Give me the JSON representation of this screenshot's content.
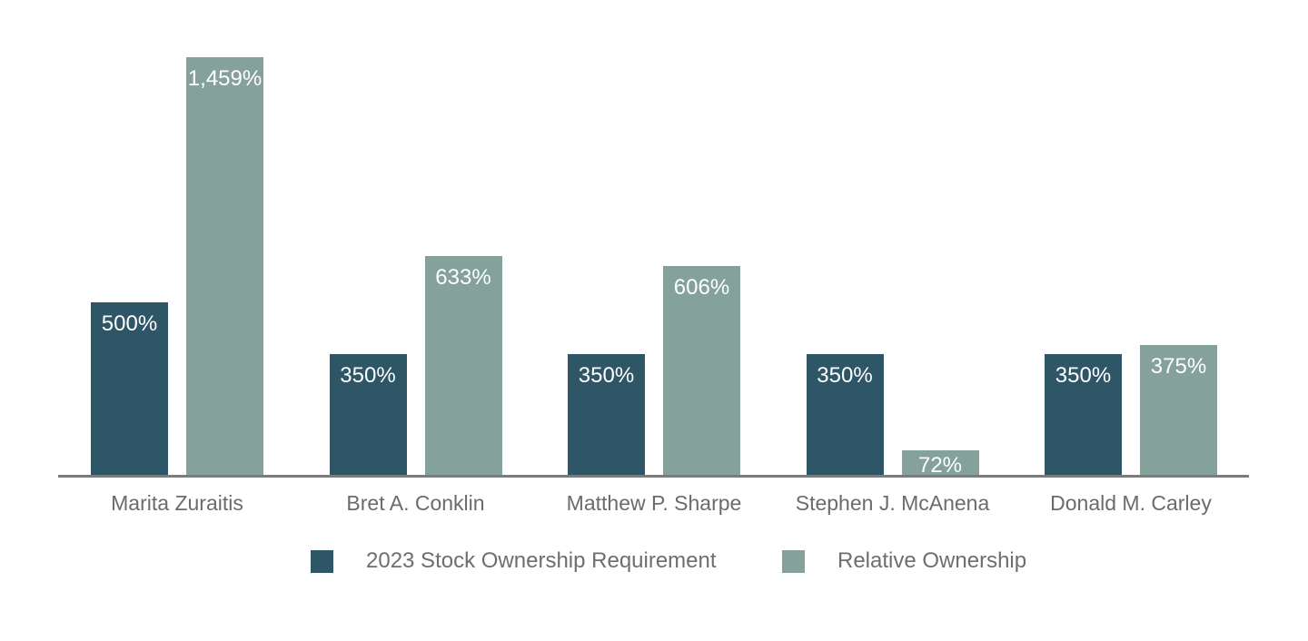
{
  "chart_data": {
    "type": "bar",
    "title": "",
    "xlabel": "",
    "ylabel": "",
    "value_suffix": "%",
    "ylim": [
      0,
      1210
    ],
    "grid": false,
    "legend_position": "bottom",
    "value_label_position": "inside-top",
    "note": "Tallest bar (1,459%) is visually clipped at the top of the plot area",
    "categories": [
      "Marita Zuraitis",
      "Bret A. Conklin",
      "Matthew P. Sharpe",
      "Stephen J. McAnena",
      "Donald M. Carley"
    ],
    "series": [
      {
        "name": "2023 Stock Ownership Requirement",
        "color": "#2e5667",
        "values": [
          500,
          350,
          350,
          350,
          350
        ],
        "labels": [
          "500%",
          "350%",
          "350%",
          "350%",
          "350%"
        ]
      },
      {
        "name": "Relative Ownership",
        "color": "#85a19c",
        "values": [
          1459,
          633,
          606,
          72,
          375
        ],
        "labels": [
          "1,459%",
          "633%",
          "606%",
          "72%",
          "375%"
        ]
      }
    ]
  },
  "colors": {
    "background": "#ffffff",
    "axis_line": "#7b7b7b",
    "bar_value_text": "#ffffff",
    "category_text": "#6b6b6b",
    "legend_text": "#6e6e6e"
  }
}
